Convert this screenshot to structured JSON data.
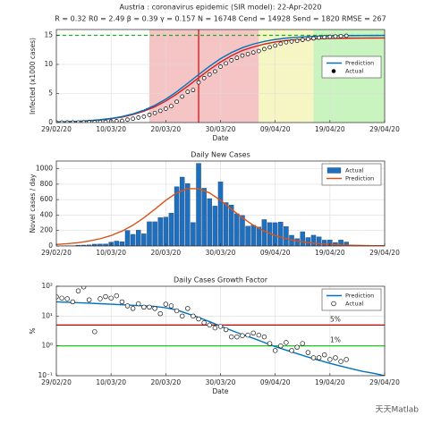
{
  "chart_data": [
    {
      "type": "line",
      "title": "Austria : coronavirus epidemic (SIR model): 22-Apr-2020",
      "subtitle": "R = 0.32  R0 = 2.49  β = 0.39  γ = 0.157  N = 16748  Cend = 14928  Send = 1820  RMSE = 267",
      "xlabel": "Date",
      "ylabel": "Infected (x1000 cases)",
      "xlim": [
        "2020-02-29",
        "2020-04-29"
      ],
      "xticks": [
        {
          "value": "2020-02-29",
          "label": "29/02/20"
        },
        {
          "value": "2020-03-10",
          "label": "10/03/20"
        },
        {
          "value": "2020-03-20",
          "label": "20/03/20"
        },
        {
          "value": "2020-03-30",
          "label": "30/03/20"
        },
        {
          "value": "2020-04-09",
          "label": "09/04/20"
        },
        {
          "value": "2020-04-19",
          "label": "19/04/20"
        },
        {
          "value": "2020-04-29",
          "label": "29/04/20"
        }
      ],
      "ylim": [
        0,
        16
      ],
      "yticks": [
        0,
        5,
        10,
        15
      ],
      "grid": true,
      "legend": "east",
      "regions": [
        {
          "start": "2020-03-17",
          "end": "2020-04-06",
          "color": "#f5c4c4"
        },
        {
          "start": "2020-04-06",
          "end": "2020-04-16",
          "color": "#f6f6c4"
        },
        {
          "start": "2020-04-16",
          "end": "2020-04-29",
          "color": "#c9f4c0"
        }
      ],
      "vlines": [
        {
          "x": "2020-03-26",
          "color": "#e00000"
        }
      ],
      "hlines": [
        {
          "y": 15,
          "color": "#22aa22",
          "dash": true
        }
      ],
      "series": [
        {
          "color": "#d02020",
          "style": "line",
          "x": [
            "2020-02-29",
            "2020-03-02",
            "2020-03-04",
            "2020-03-06",
            "2020-03-08",
            "2020-03-10",
            "2020-03-12",
            "2020-03-14",
            "2020-03-16",
            "2020-03-18",
            "2020-03-20",
            "2020-03-22",
            "2020-03-24",
            "2020-03-26",
            "2020-03-28",
            "2020-03-30",
            "2020-04-01",
            "2020-04-03",
            "2020-04-05",
            "2020-04-07",
            "2020-04-09",
            "2020-04-11",
            "2020-04-13",
            "2020-04-15",
            "2020-04-17",
            "2020-04-19",
            "2020-04-21",
            "2020-04-23",
            "2020-04-25",
            "2020-04-27",
            "2020-04-29"
          ],
          "values": [
            0.1,
            0.14,
            0.2,
            0.3,
            0.44,
            0.65,
            0.94,
            1.37,
            1.95,
            2.72,
            3.7,
            4.9,
            6.25,
            7.7,
            9.1,
            10.4,
            11.5,
            12.4,
            13.0,
            13.5,
            13.85,
            14.1,
            14.25,
            14.35,
            14.42,
            14.47,
            14.5,
            14.52,
            14.53,
            14.54,
            14.55
          ]
        },
        {
          "name": "Prediction",
          "color": "#0072bd",
          "style": "line",
          "x": [
            "2020-02-29",
            "2020-03-02",
            "2020-03-04",
            "2020-03-06",
            "2020-03-08",
            "2020-03-10",
            "2020-03-12",
            "2020-03-14",
            "2020-03-16",
            "2020-03-18",
            "2020-03-20",
            "2020-03-22",
            "2020-03-24",
            "2020-03-26",
            "2020-03-28",
            "2020-03-30",
            "2020-04-01",
            "2020-04-03",
            "2020-04-05",
            "2020-04-07",
            "2020-04-09",
            "2020-04-11",
            "2020-04-13",
            "2020-04-15",
            "2020-04-17",
            "2020-04-19",
            "2020-04-21",
            "2020-04-23",
            "2020-04-25",
            "2020-04-27",
            "2020-04-29"
          ],
          "values": [
            0.1,
            0.15,
            0.22,
            0.33,
            0.48,
            0.71,
            1.03,
            1.5,
            2.13,
            2.96,
            4.02,
            5.3,
            6.75,
            8.25,
            9.69,
            10.98,
            12.04,
            12.87,
            13.5,
            13.96,
            14.29,
            14.52,
            14.67,
            14.78,
            14.85,
            14.9,
            14.93,
            14.96,
            14.97,
            14.98,
            14.99
          ]
        },
        {
          "name": "Actual",
          "color": "#000000",
          "style": "markers",
          "x": [
            "2020-02-29",
            "2020-03-01",
            "2020-03-02",
            "2020-03-03",
            "2020-03-04",
            "2020-03-05",
            "2020-03-06",
            "2020-03-07",
            "2020-03-08",
            "2020-03-09",
            "2020-03-10",
            "2020-03-11",
            "2020-03-12",
            "2020-03-13",
            "2020-03-14",
            "2020-03-15",
            "2020-03-16",
            "2020-03-17",
            "2020-03-18",
            "2020-03-19",
            "2020-03-20",
            "2020-03-21",
            "2020-03-22",
            "2020-03-23",
            "2020-03-24",
            "2020-03-25",
            "2020-03-26",
            "2020-03-27",
            "2020-03-28",
            "2020-03-29",
            "2020-03-30",
            "2020-03-31",
            "2020-04-01",
            "2020-04-02",
            "2020-04-03",
            "2020-04-04",
            "2020-04-05",
            "2020-04-06",
            "2020-04-07",
            "2020-04-08",
            "2020-04-09",
            "2020-04-10",
            "2020-04-11",
            "2020-04-12",
            "2020-04-13",
            "2020-04-14",
            "2020-04-15",
            "2020-04-16",
            "2020-04-17",
            "2020-04-18",
            "2020-04-19",
            "2020-04-20",
            "2020-04-21",
            "2020-04-22"
          ],
          "values": [
            0.009,
            0.01,
            0.014,
            0.018,
            0.029,
            0.041,
            0.055,
            0.079,
            0.104,
            0.131,
            0.182,
            0.246,
            0.302,
            0.504,
            0.655,
            0.86,
            1.018,
            1.332,
            1.646,
            2.013,
            2.388,
            2.814,
            3.582,
            4.474,
            5.283,
            5.588,
            6.909,
            7.657,
            8.271,
            8.788,
            9.618,
            10.18,
            10.711,
            11.129,
            11.524,
            11.781,
            12.051,
            12.297,
            12.639,
            12.942,
            13.244,
            13.555,
            13.806,
            13.945,
            14.041,
            14.226,
            14.336,
            14.476,
            14.595,
            14.671,
            14.749,
            14.795,
            14.873,
            14.925
          ]
        }
      ]
    },
    {
      "type": "bar",
      "title": "Daily New Cases",
      "ylabel": "Novel cases / day",
      "xlim": [
        "2020-02-29",
        "2020-04-29"
      ],
      "xticks": [
        {
          "value": "2020-02-29",
          "label": "29/02/20"
        },
        {
          "value": "2020-03-10",
          "label": "10/03/20"
        },
        {
          "value": "2020-03-20",
          "label": "20/03/20"
        },
        {
          "value": "2020-03-30",
          "label": "30/03/20"
        },
        {
          "value": "2020-04-09",
          "label": "09/04/20"
        },
        {
          "value": "2020-04-19",
          "label": "19/04/20"
        },
        {
          "value": "2020-04-29",
          "label": "29/04/20"
        }
      ],
      "ylim": [
        0,
        1100
      ],
      "yticks": [
        0,
        200,
        400,
        600,
        800,
        1000
      ],
      "grid": true,
      "legend": "northeast",
      "series": [
        {
          "name": "Actual",
          "color": "#1f6fbf",
          "style": "bar",
          "x": [
            "2020-03-01",
            "2020-03-02",
            "2020-03-03",
            "2020-03-04",
            "2020-03-05",
            "2020-03-06",
            "2020-03-07",
            "2020-03-08",
            "2020-03-09",
            "2020-03-10",
            "2020-03-11",
            "2020-03-12",
            "2020-03-13",
            "2020-03-14",
            "2020-03-15",
            "2020-03-16",
            "2020-03-17",
            "2020-03-18",
            "2020-03-19",
            "2020-03-20",
            "2020-03-21",
            "2020-03-22",
            "2020-03-23",
            "2020-03-24",
            "2020-03-25",
            "2020-03-26",
            "2020-03-27",
            "2020-03-28",
            "2020-03-29",
            "2020-03-30",
            "2020-03-31",
            "2020-04-01",
            "2020-04-02",
            "2020-04-03",
            "2020-04-04",
            "2020-04-05",
            "2020-04-06",
            "2020-04-07",
            "2020-04-08",
            "2020-04-09",
            "2020-04-10",
            "2020-04-11",
            "2020-04-12",
            "2020-04-13",
            "2020-04-14",
            "2020-04-15",
            "2020-04-16",
            "2020-04-17",
            "2020-04-18",
            "2020-04-19",
            "2020-04-20",
            "2020-04-21",
            "2020-04-22"
          ],
          "values": [
            1,
            4,
            4,
            11,
            12,
            14,
            24,
            25,
            27,
            51,
            64,
            56,
            202,
            151,
            205,
            158,
            314,
            314,
            367,
            375,
            426,
            768,
            892,
            809,
            305,
            1070,
            748,
            614,
            517,
            830,
            562,
            531,
            418,
            395,
            257,
            270,
            246,
            342,
            303,
            302,
            311,
            251,
            139,
            96,
            185,
            110,
            140,
            119,
            76,
            78,
            46,
            78,
            52
          ]
        },
        {
          "name": "Prediction",
          "color": "#d95319",
          "style": "line",
          "x": [
            "2020-02-29",
            "2020-03-02",
            "2020-03-04",
            "2020-03-06",
            "2020-03-08",
            "2020-03-10",
            "2020-03-12",
            "2020-03-14",
            "2020-03-16",
            "2020-03-18",
            "2020-03-20",
            "2020-03-22",
            "2020-03-24",
            "2020-03-26",
            "2020-03-28",
            "2020-03-30",
            "2020-04-01",
            "2020-04-03",
            "2020-04-05",
            "2020-04-07",
            "2020-04-09",
            "2020-04-11",
            "2020-04-13",
            "2020-04-15",
            "2020-04-17",
            "2020-04-19",
            "2020-04-21",
            "2020-04-23",
            "2020-04-25",
            "2020-04-27",
            "2020-04-29"
          ],
          "values": [
            20,
            30,
            43,
            64,
            94,
            135,
            193,
            269,
            365,
            476,
            591,
            687,
            742,
            742,
            687,
            591,
            476,
            365,
            269,
            193,
            135,
            94,
            64,
            43,
            30,
            20,
            13,
            9,
            6,
            4,
            3
          ]
        }
      ]
    },
    {
      "type": "line",
      "title": "Daily Cases Growth Factor",
      "xlabel": "Date",
      "ylabel": "%",
      "xlim": [
        "2020-02-29",
        "2020-04-29"
      ],
      "xticks": [
        {
          "value": "2020-02-29",
          "label": "29/02/20"
        },
        {
          "value": "2020-03-10",
          "label": "10/03/20"
        },
        {
          "value": "2020-03-20",
          "label": "20/03/20"
        },
        {
          "value": "2020-03-30",
          "label": "30/03/20"
        },
        {
          "value": "2020-04-09",
          "label": "09/04/20"
        },
        {
          "value": "2020-04-19",
          "label": "19/04/20"
        },
        {
          "value": "2020-04-29",
          "label": "29/04/20"
        }
      ],
      "ylim": [
        0.1,
        100
      ],
      "log": true,
      "yticks": [
        {
          "value": 0.1,
          "label": "10⁻¹"
        },
        {
          "value": 1,
          "label": "10⁰"
        },
        {
          "value": 10,
          "label": "10¹"
        },
        {
          "value": 100,
          "label": "10²"
        }
      ],
      "grid": true,
      "legend": "northeast",
      "hlines": [
        {
          "y": 5,
          "color": "#c00000",
          "label": "5%"
        },
        {
          "y": 1,
          "color": "#00c000",
          "label": "1%"
        }
      ],
      "series": [
        {
          "name": "Prediction",
          "color": "#0072bd",
          "style": "line",
          "x": [
            "2020-02-29",
            "2020-03-02",
            "2020-03-04",
            "2020-03-06",
            "2020-03-08",
            "2020-03-10",
            "2020-03-12",
            "2020-03-14",
            "2020-03-16",
            "2020-03-18",
            "2020-03-20",
            "2020-03-22",
            "2020-03-24",
            "2020-03-26",
            "2020-03-28",
            "2020-03-30",
            "2020-04-01",
            "2020-04-03",
            "2020-04-05",
            "2020-04-07",
            "2020-04-09",
            "2020-04-11",
            "2020-04-13",
            "2020-04-15",
            "2020-04-17",
            "2020-04-19",
            "2020-04-21",
            "2020-04-23",
            "2020-04-25",
            "2020-04-27",
            "2020-04-29"
          ],
          "values": [
            30,
            29,
            28,
            27,
            26,
            25,
            24,
            23,
            22,
            21,
            19,
            16,
            12,
            9,
            6.5,
            4.6,
            3.3,
            2.4,
            1.8,
            1.3,
            0.95,
            0.72,
            0.55,
            0.42,
            0.33,
            0.26,
            0.21,
            0.17,
            0.14,
            0.12,
            0.1
          ]
        },
        {
          "name": "Actual",
          "color": "#000000",
          "style": "circles",
          "x": [
            "2020-02-29",
            "2020-03-01",
            "2020-03-02",
            "2020-03-03",
            "2020-03-04",
            "2020-03-05",
            "2020-03-06",
            "2020-03-07",
            "2020-03-08",
            "2020-03-09",
            "2020-03-10",
            "2020-03-11",
            "2020-03-12",
            "2020-03-13",
            "2020-03-14",
            "2020-03-15",
            "2020-03-16",
            "2020-03-17",
            "2020-03-18",
            "2020-03-19",
            "2020-03-20",
            "2020-03-21",
            "2020-03-22",
            "2020-03-23",
            "2020-03-24",
            "2020-03-25",
            "2020-03-26",
            "2020-03-27",
            "2020-03-28",
            "2020-03-29",
            "2020-03-30",
            "2020-03-31",
            "2020-04-01",
            "2020-04-02",
            "2020-04-03",
            "2020-04-04",
            "2020-04-05",
            "2020-04-06",
            "2020-04-07",
            "2020-04-08",
            "2020-04-09",
            "2020-04-10",
            "2020-04-11",
            "2020-04-12",
            "2020-04-13",
            "2020-04-14",
            "2020-04-15",
            "2020-04-16",
            "2020-04-17",
            "2020-04-18",
            "2020-04-19",
            "2020-04-20",
            "2020-04-21",
            "2020-04-22"
          ],
          "values": [
            44,
            40,
            38,
            30,
            70,
            95,
            35,
            3,
            38,
            45,
            40,
            48,
            30,
            22,
            18,
            26,
            20,
            20,
            18,
            12,
            25,
            22,
            15,
            10,
            18,
            10,
            8,
            6,
            5,
            4,
            4.5,
            3.5,
            2,
            2,
            2.2,
            2.3,
            2.7,
            2.3,
            2,
            1.2,
            0.7,
            1,
            1.3,
            0.7,
            0.9,
            1.2,
            0.6,
            0.4,
            0.4,
            0.5,
            0.35,
            0.4,
            0.3,
            0.35
          ]
        }
      ]
    }
  ],
  "watermark": "天天Matlab"
}
